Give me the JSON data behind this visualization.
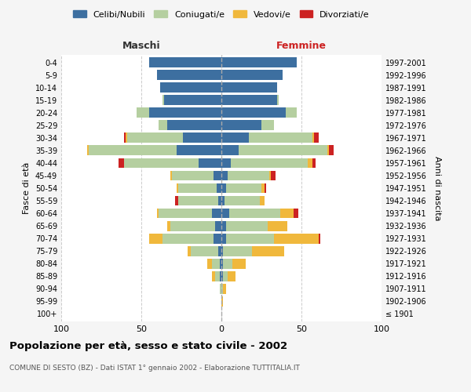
{
  "age_groups": [
    "100+",
    "95-99",
    "90-94",
    "85-89",
    "80-84",
    "75-79",
    "70-74",
    "65-69",
    "60-64",
    "55-59",
    "50-54",
    "45-49",
    "40-44",
    "35-39",
    "30-34",
    "25-29",
    "20-24",
    "15-19",
    "10-14",
    "5-9",
    "0-4"
  ],
  "birth_years": [
    "≤ 1901",
    "1902-1906",
    "1907-1911",
    "1912-1916",
    "1917-1921",
    "1922-1926",
    "1927-1931",
    "1932-1936",
    "1937-1941",
    "1942-1946",
    "1947-1951",
    "1952-1956",
    "1957-1961",
    "1962-1966",
    "1967-1971",
    "1972-1976",
    "1977-1981",
    "1982-1986",
    "1987-1991",
    "1992-1996",
    "1997-2001"
  ],
  "male": {
    "celibi": [
      0,
      0,
      0,
      1,
      1,
      2,
      5,
      4,
      6,
      2,
      3,
      5,
      14,
      28,
      24,
      34,
      45,
      36,
      38,
      40,
      45
    ],
    "coniugati": [
      0,
      0,
      1,
      3,
      5,
      17,
      32,
      28,
      33,
      25,
      24,
      26,
      47,
      55,
      35,
      5,
      8,
      1,
      0,
      0,
      0
    ],
    "vedovi": [
      0,
      0,
      0,
      2,
      3,
      2,
      8,
      2,
      1,
      0,
      1,
      1,
      0,
      1,
      1,
      0,
      0,
      0,
      0,
      0,
      0
    ],
    "divorziati": [
      0,
      0,
      0,
      0,
      0,
      0,
      0,
      0,
      0,
      2,
      0,
      0,
      3,
      0,
      1,
      0,
      0,
      0,
      0,
      0,
      0
    ]
  },
  "female": {
    "nubili": [
      0,
      0,
      0,
      1,
      1,
      1,
      3,
      3,
      5,
      2,
      3,
      4,
      6,
      11,
      17,
      25,
      40,
      35,
      35,
      38,
      47
    ],
    "coniugate": [
      0,
      0,
      1,
      3,
      6,
      18,
      30,
      26,
      32,
      22,
      22,
      26,
      48,
      55,
      40,
      8,
      7,
      1,
      0,
      0,
      0
    ],
    "vedove": [
      0,
      1,
      2,
      5,
      8,
      20,
      28,
      12,
      8,
      3,
      2,
      1,
      3,
      1,
      1,
      0,
      0,
      0,
      0,
      0,
      0
    ],
    "divorziate": [
      0,
      0,
      0,
      0,
      0,
      0,
      1,
      0,
      3,
      0,
      1,
      3,
      2,
      3,
      3,
      0,
      0,
      0,
      0,
      0,
      0
    ]
  },
  "colors": {
    "celibi": "#3d6fa0",
    "coniugati": "#b5cfa0",
    "vedovi": "#f0b83c",
    "divorziati": "#cc2222"
  },
  "xlim": 100,
  "title": "Popolazione per età, sesso e stato civile - 2002",
  "subtitle": "COMUNE DI SESTO (BZ) - Dati ISTAT 1° gennaio 2002 - Elaborazione TUTTITALIA.IT",
  "xlabel_left": "Maschi",
  "xlabel_right": "Femmine",
  "ylabel_left": "Fasce di età",
  "ylabel_right": "Anni di nascita",
  "legend_labels": [
    "Celibi/Nubili",
    "Coniugati/e",
    "Vedovi/e",
    "Divorziati/e"
  ],
  "bg_color": "#f5f5f5",
  "plot_bg": "#ffffff"
}
